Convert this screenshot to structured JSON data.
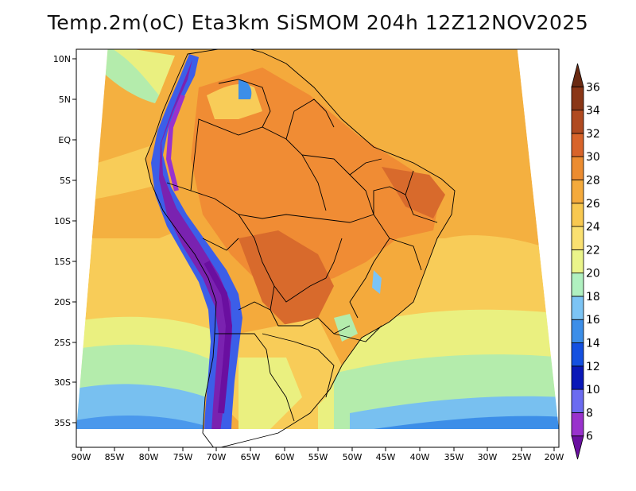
{
  "title": "Temp.2m(oC) Eta3km SiSMOM 204h 12Z12NOV2025",
  "map": {
    "variable": "2m temperature",
    "units": "oC",
    "lat_ticks": [
      "10N",
      "5N",
      "EQ",
      "5S",
      "10S",
      "15S",
      "20S",
      "25S",
      "30S",
      "35S"
    ],
    "lon_ticks": [
      "90W",
      "85W",
      "80W",
      "75W",
      "70W",
      "65W",
      "60W",
      "55W",
      "50W",
      "45W",
      "40W",
      "35W",
      "30W",
      "25W",
      "20W"
    ]
  },
  "colorbar": {
    "levels": [
      "6",
      "8",
      "10",
      "12",
      "14",
      "16",
      "18",
      "20",
      "22",
      "24",
      "26",
      "28",
      "30",
      "32",
      "34",
      "36"
    ],
    "colors": [
      "#6a0fa0",
      "#9932cc",
      "#6b6bf0",
      "#0a18b8",
      "#1450e0",
      "#3c8ee8",
      "#7cc4f4",
      "#b0f0c0",
      "#eaf48a",
      "#fae070",
      "#f8c850",
      "#f4aa3c",
      "#ec8c30",
      "#d8642a",
      "#b04a20",
      "#8a3616",
      "#6a2a12"
    ]
  },
  "colors": {
    "ocean_north": "#f4b040",
    "ocean_south_warm": "#f8cc58",
    "ocean_cool": "#eaf080",
    "ocean_green": "#b4ecac",
    "ocean_blue": "#78c0f0",
    "land_hot": "#f08c34",
    "land_very_hot": "#d86a2c",
    "andes_cold": "#7a22b0",
    "andes_blue": "#3c5ee8",
    "border": "#000000"
  }
}
